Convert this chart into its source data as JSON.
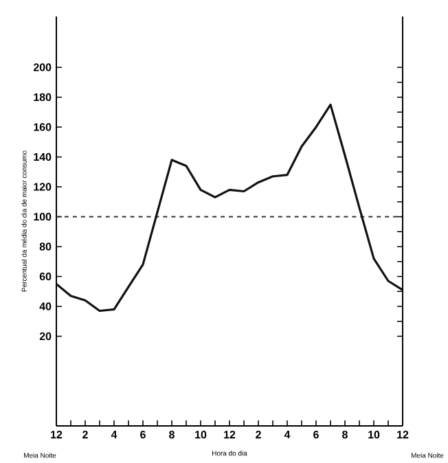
{
  "chart_data": {
    "type": "line",
    "xlabel": "Hora do dia",
    "ylabel": "Percentual da média do dia de maior consumo",
    "categories": [
      "12",
      null,
      "2",
      null,
      "4",
      null,
      "6",
      null,
      "8",
      null,
      "10",
      null,
      "12",
      null,
      "2",
      null,
      "4",
      null,
      "6",
      null,
      "8",
      null,
      "10",
      null,
      "12"
    ],
    "series": [
      {
        "color": "#111111",
        "values": [
          55,
          47,
          44,
          37,
          38,
          53,
          68,
          103,
          138,
          134,
          118,
          113,
          118,
          117,
          123,
          127,
          128,
          147,
          160,
          175,
          141,
          106,
          72,
          57,
          51
        ]
      }
    ],
    "ylim": [
      -40,
      234
    ],
    "yticks": [
      20,
      40,
      60,
      80,
      100,
      120,
      140,
      160,
      180,
      200
    ],
    "ref_lines": [
      {
        "axis": "y",
        "value": 100,
        "color": "#333333",
        "line_style": "dashed"
      }
    ],
    "annotations": [
      "Meia Noite",
      "Meia Noite"
    ]
  }
}
